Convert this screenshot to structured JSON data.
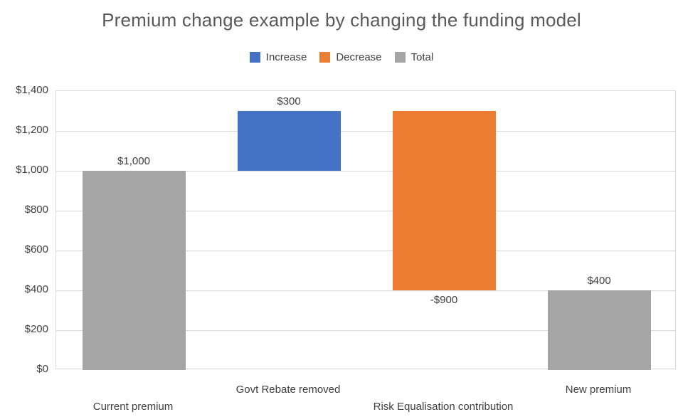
{
  "title": "Premium change example by changing the funding model",
  "legend": [
    {
      "label": "Increase",
      "color": "#4472C4"
    },
    {
      "label": "Decrease",
      "color": "#ED7D31"
    },
    {
      "label": "Total",
      "color": "#A5A5A5"
    }
  ],
  "colors": {
    "increase": "#4472C4",
    "decrease": "#ED7D31",
    "total": "#A5A5A5",
    "grid": "#D9D9D9",
    "title_text": "#595959",
    "label_text": "#404040",
    "background": "#FFFFFF"
  },
  "chart_data": {
    "type": "bar",
    "subtype": "waterfall",
    "title": "Premium change example by changing the funding model",
    "categories": [
      "Current premium",
      "Govt Rebate removed",
      "Risk Equalisation contribution",
      "New premium"
    ],
    "series": [
      {
        "name": "Increase",
        "color": "#4472C4"
      },
      {
        "name": "Decrease",
        "color": "#ED7D31"
      },
      {
        "name": "Total",
        "color": "#A5A5A5"
      }
    ],
    "bars": [
      {
        "category": "Current premium",
        "series": "Total",
        "start": 0,
        "end": 1000,
        "value": 1000,
        "label": "$1,000",
        "label_position": "above",
        "stagger_row": "lower"
      },
      {
        "category": "Govt Rebate removed",
        "series": "Increase",
        "start": 1000,
        "end": 1300,
        "value": 300,
        "label": "$300",
        "label_position": "above",
        "stagger_row": "upper"
      },
      {
        "category": "Risk Equalisation contribution",
        "series": "Decrease",
        "start": 1300,
        "end": 400,
        "value": -900,
        "label": "-$900",
        "label_position": "below",
        "stagger_row": "lower"
      },
      {
        "category": "New premium",
        "series": "Total",
        "start": 0,
        "end": 400,
        "value": 400,
        "label": "$400",
        "label_position": "above",
        "stagger_row": "upper"
      }
    ],
    "y_axis": {
      "min": 0,
      "max": 1400,
      "step": 200,
      "tick_labels": [
        "$0",
        "$200",
        "$400",
        "$600",
        "$800",
        "$1,000",
        "$1,200",
        "$1,400"
      ],
      "format": "currency"
    },
    "xlabel": "",
    "ylabel": "",
    "grid": true,
    "legend_position": "top"
  }
}
